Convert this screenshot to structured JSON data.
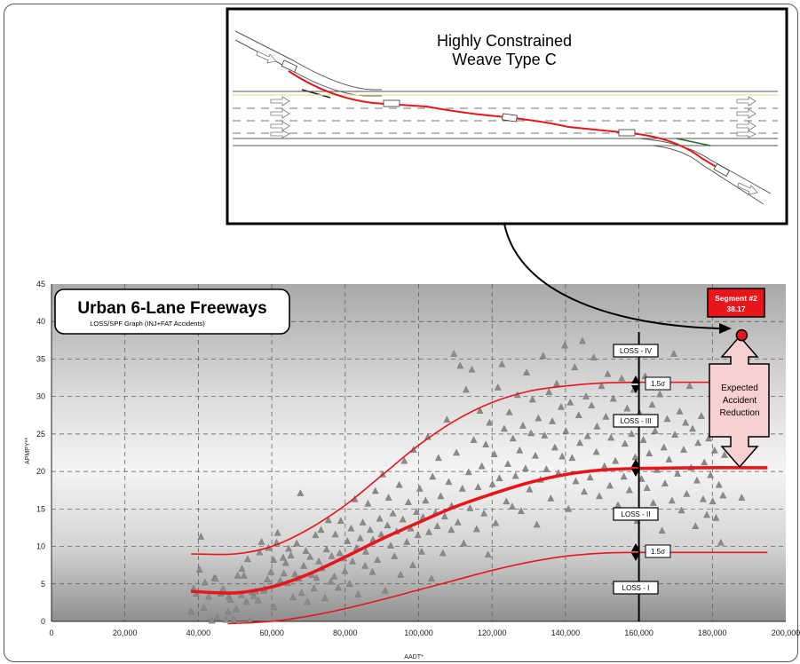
{
  "chart_data": {
    "type": "scatter",
    "title": "Urban 6-Lane Freeways",
    "subtitle": "LOSS/SPF Graph (INJ+FAT Accidents)",
    "xlabel": "AADT*",
    "ylabel": "APMPY**",
    "xlim": [
      0,
      200000
    ],
    "ylim": [
      0,
      45
    ],
    "x_ticks": [
      "0",
      "20,000",
      "40,000",
      "60,000",
      "80,000",
      "100,000",
      "120,000",
      "140,000",
      "160,000",
      "180,000",
      "200,000"
    ],
    "y_ticks": [
      "0",
      "5",
      "10",
      "15",
      "20",
      "25",
      "30",
      "35",
      "40",
      "45"
    ],
    "grid": true,
    "spf_curve": {
      "x": [
        38000,
        50000,
        60000,
        70000,
        80000,
        90000,
        100000,
        110000,
        120000,
        130000,
        140000,
        150000,
        160000,
        175000,
        195000
      ],
      "y": [
        4.0,
        3.8,
        4.6,
        6.3,
        8.6,
        11.0,
        13.2,
        15.3,
        17.0,
        18.5,
        19.6,
        20.2,
        20.4,
        20.5,
        20.5
      ]
    },
    "upper_curve": {
      "x": [
        38000,
        50000,
        60000,
        70000,
        80000,
        90000,
        100000,
        110000,
        120000,
        130000,
        140000,
        150000,
        160000,
        175000,
        195000
      ],
      "y": [
        9.0,
        9.0,
        10.0,
        12.3,
        15.5,
        19.5,
        23.5,
        26.8,
        29.2,
        30.7,
        31.4,
        31.8,
        31.9,
        31.9,
        31.9
      ]
    },
    "lower_curve": {
      "x": [
        48000,
        60000,
        70000,
        80000,
        90000,
        100000,
        110000,
        120000,
        130000,
        140000,
        150000,
        160000,
        175000,
        195000
      ],
      "y": [
        -0.3,
        0.0,
        0.7,
        1.7,
        2.9,
        4.2,
        5.5,
        6.8,
        7.9,
        8.7,
        9.1,
        9.2,
        9.2,
        9.2
      ]
    },
    "loss_labels": [
      "LOSS - IV",
      "LOSS - III",
      "LOSS - II",
      "LOSS - I"
    ],
    "sigma_label": "1.5σ",
    "segment": {
      "label": "Segment #2",
      "value": "38.17",
      "x": 188000,
      "y": 38.17
    },
    "reduction_label": "Expected Accident Reduction",
    "reduction_words": [
      "Expected",
      "Accident",
      "Reduction"
    ],
    "inset": {
      "title_line1": "Highly Constrained",
      "title_line2": "Weave Type C"
    },
    "colors": {
      "curve": "#e8161b",
      "segment": "#e8161b",
      "arrow_fill": "#f7d0d2",
      "marker": "#8a8a8a"
    },
    "points": [
      [
        38000,
        1.3
      ],
      [
        38700,
        4.4
      ],
      [
        39400,
        3.7
      ],
      [
        40300,
        6.9
      ],
      [
        40700,
        11.3
      ],
      [
        41500,
        1.8
      ],
      [
        41800,
        5.2
      ],
      [
        42800,
        3.3
      ],
      [
        43700,
        0.1
      ],
      [
        44400,
        5.8
      ],
      [
        44700,
        5.7
      ],
      [
        45200,
        0.5
      ],
      [
        46100,
        3.7
      ],
      [
        46300,
        3.9
      ],
      [
        46800,
        4.3
      ],
      [
        47500,
        0.2
      ],
      [
        48100,
        1.3
      ],
      [
        48300,
        3.3
      ],
      [
        48700,
        2.9
      ],
      [
        49600,
        0.2
      ],
      [
        50300,
        1.6
      ],
      [
        50700,
        6.1
      ],
      [
        51700,
        3.5
      ],
      [
        51900,
        7.0
      ],
      [
        52400,
        6.1
      ],
      [
        53100,
        2.6
      ],
      [
        53400,
        8.3
      ],
      [
        54000,
        0.1
      ],
      [
        54600,
        3.9
      ],
      [
        55100,
        3.4
      ],
      [
        55600,
        4.0
      ],
      [
        56300,
        2.8
      ],
      [
        56700,
        9.2
      ],
      [
        57200,
        10.6
      ],
      [
        57800,
        4.1
      ],
      [
        58000,
        4.4
      ],
      [
        58800,
        5.6
      ],
      [
        59100,
        9.8
      ],
      [
        59800,
        6.6
      ],
      [
        60500,
        8.2
      ],
      [
        60600,
        1.9
      ],
      [
        61300,
        10.5
      ],
      [
        61600,
        11.8
      ],
      [
        62300,
        5.4
      ],
      [
        63100,
        8.5
      ],
      [
        63300,
        6.4
      ],
      [
        63800,
        7.8
      ],
      [
        64300,
        5.1
      ],
      [
        64600,
        9.7
      ],
      [
        65200,
        8.8
      ],
      [
        65800,
        3.2
      ],
      [
        66300,
        6.3
      ],
      [
        66800,
        10.4
      ],
      [
        67400,
        5.7
      ],
      [
        67800,
        17.1
      ],
      [
        68100,
        3.8
      ],
      [
        68700,
        7.4
      ],
      [
        69300,
        9.4
      ],
      [
        69700,
        2.6
      ],
      [
        70400,
        8.6
      ],
      [
        70900,
        6.2
      ],
      [
        71500,
        4.4
      ],
      [
        71900,
        11.5
      ],
      [
        72200,
        5.8
      ],
      [
        72800,
        8.0
      ],
      [
        73400,
        12.2
      ],
      [
        73700,
        7.1
      ],
      [
        74500,
        3.1
      ],
      [
        74900,
        9.6
      ],
      [
        75400,
        13.5
      ],
      [
        76100,
        5.3
      ],
      [
        76300,
        8.7
      ],
      [
        77000,
        6.0
      ],
      [
        77300,
        11.6
      ],
      [
        78100,
        4.5
      ],
      [
        78500,
        9.1
      ],
      [
        78800,
        13.4
      ],
      [
        79600,
        8.4
      ],
      [
        79900,
        6.7
      ],
      [
        80600,
        10.7
      ],
      [
        81200,
        5.0
      ],
      [
        81600,
        12.4
      ],
      [
        82000,
        8.0
      ],
      [
        82600,
        16.3
      ],
      [
        83100,
        9.8
      ],
      [
        83500,
        3.6
      ],
      [
        84100,
        11.1
      ],
      [
        84800,
        13.2
      ],
      [
        85400,
        7.4
      ],
      [
        85600,
        9.3
      ],
      [
        86200,
        15.7
      ],
      [
        86800,
        12.2
      ],
      [
        87400,
        6.6
      ],
      [
        87600,
        10.9
      ],
      [
        88200,
        17.4
      ],
      [
        88800,
        8.2
      ],
      [
        89400,
        13.7
      ],
      [
        89800,
        11.6
      ],
      [
        90200,
        19.6
      ],
      [
        90900,
        4.1
      ],
      [
        91500,
        12.8
      ],
      [
        91800,
        16.5
      ],
      [
        92400,
        10.1
      ],
      [
        93000,
        14.4
      ],
      [
        93400,
        8.7
      ],
      [
        94000,
        12.0
      ],
      [
        94700,
        18.2
      ],
      [
        95100,
        6.2
      ],
      [
        95700,
        13.6
      ],
      [
        96100,
        21.4
      ],
      [
        96800,
        10.6
      ],
      [
        97200,
        15.9
      ],
      [
        97800,
        12.4
      ],
      [
        98400,
        7.5
      ],
      [
        98600,
        22.9
      ],
      [
        99400,
        14.6
      ],
      [
        99800,
        11.5
      ],
      [
        100300,
        17.7
      ],
      [
        100800,
        9.3
      ],
      [
        101200,
        13.9
      ],
      [
        101900,
        16.1
      ],
      [
        102500,
        24.6
      ],
      [
        102800,
        11.9
      ],
      [
        103500,
        5.7
      ],
      [
        103800,
        19.3
      ],
      [
        104600,
        14.5
      ],
      [
        105100,
        12.7
      ],
      [
        105400,
        21.8
      ],
      [
        106000,
        16.7
      ],
      [
        106600,
        9.1
      ],
      [
        107100,
        14.0
      ],
      [
        107700,
        26.9
      ],
      [
        108200,
        18.6
      ],
      [
        108900,
        12.2
      ],
      [
        109000,
        15.4
      ],
      [
        109600,
        35.7
      ],
      [
        110300,
        22.5
      ],
      [
        110700,
        13.2
      ],
      [
        111300,
        34.1
      ],
      [
        111900,
        17.7
      ],
      [
        112300,
        10.4
      ],
      [
        112900,
        30.9
      ],
      [
        113600,
        19.9
      ],
      [
        114000,
        15.1
      ],
      [
        114500,
        33.6
      ],
      [
        115000,
        24.2
      ],
      [
        115800,
        12.3
      ],
      [
        116200,
        17.9
      ],
      [
        116700,
        28.1
      ],
      [
        117200,
        20.7
      ],
      [
        117800,
        14.4
      ],
      [
        118300,
        23.6
      ],
      [
        118900,
        8.9
      ],
      [
        119300,
        26.5
      ],
      [
        120100,
        18.3
      ],
      [
        120600,
        22.3
      ],
      [
        121000,
        13.1
      ],
      [
        121600,
        31.2
      ],
      [
        122000,
        19.1
      ],
      [
        122700,
        34.3
      ],
      [
        123300,
        25.7
      ],
      [
        123900,
        16.0
      ],
      [
        124300,
        21.0
      ],
      [
        124700,
        27.9
      ],
      [
        125500,
        15.3
      ],
      [
        125700,
        24.4
      ],
      [
        126400,
        19.4
      ],
      [
        126900,
        30.2
      ],
      [
        127500,
        22.8
      ],
      [
        127900,
        14.7
      ],
      [
        128400,
        26.1
      ],
      [
        129100,
        20.4
      ],
      [
        129400,
        33.2
      ],
      [
        130200,
        17.6
      ],
      [
        130600,
        25.1
      ],
      [
        131000,
        29.6
      ],
      [
        131800,
        22.1
      ],
      [
        132200,
        12.9
      ],
      [
        132600,
        27.1
      ],
      [
        133200,
        18.9
      ],
      [
        133900,
        35.4
      ],
      [
        134300,
        24.8
      ],
      [
        134800,
        20.3
      ],
      [
        135500,
        30.6
      ],
      [
        136000,
        16.4
      ],
      [
        136400,
        26.7
      ],
      [
        137100,
        23.2
      ],
      [
        137600,
        31.7
      ],
      [
        138100,
        19.8
      ],
      [
        138800,
        28.6
      ],
      [
        139100,
        22.0
      ],
      [
        139800,
        36.8
      ],
      [
        140100,
        25.4
      ],
      [
        140800,
        15.0
      ],
      [
        141300,
        29.2
      ],
      [
        141800,
        21.8
      ],
      [
        142500,
        33.9
      ],
      [
        142800,
        18.7
      ],
      [
        143600,
        27.5
      ],
      [
        143900,
        23.8
      ],
      [
        144600,
        37.4
      ],
      [
        145100,
        17.3
      ],
      [
        145600,
        30.0
      ],
      [
        146000,
        24.7
      ],
      [
        146700,
        19.2
      ],
      [
        147100,
        28.8
      ],
      [
        147700,
        35.2
      ],
      [
        148400,
        22.6
      ],
      [
        148600,
        26.0
      ],
      [
        149200,
        16.7
      ],
      [
        149800,
        31.4
      ],
      [
        150600,
        20.7
      ],
      [
        151000,
        27.3
      ],
      [
        151500,
        33.0
      ],
      [
        152100,
        18.1
      ],
      [
        152400,
        24.5
      ],
      [
        153000,
        29.7
      ],
      [
        153600,
        21.4
      ],
      [
        154300,
        15.5
      ],
      [
        154800,
        26.3
      ],
      [
        155300,
        32.4
      ],
      [
        155900,
        19.3
      ],
      [
        156200,
        23.7
      ],
      [
        156800,
        28.4
      ],
      [
        157400,
        17.5
      ],
      [
        158000,
        25.0
      ],
      [
        158600,
        30.9
      ],
      [
        159000,
        21.9
      ],
      [
        159500,
        13.4
      ],
      [
        160200,
        27.8
      ],
      [
        160700,
        19.0
      ],
      [
        161200,
        24.2
      ],
      [
        161700,
        32.7
      ],
      [
        162200,
        17.8
      ],
      [
        162800,
        22.4
      ],
      [
        163600,
        28.9
      ],
      [
        163900,
        15.8
      ],
      [
        164400,
        25.4
      ],
      [
        164900,
        20.2
      ],
      [
        165700,
        30.3
      ],
      [
        166300,
        12.1
      ],
      [
        166800,
        23.2
      ],
      [
        167100,
        18.4
      ],
      [
        167700,
        27.0
      ],
      [
        168200,
        21.6
      ],
      [
        169000,
        16.1
      ],
      [
        169500,
        35.7
      ],
      [
        169800,
        24.9
      ],
      [
        170500,
        19.7
      ],
      [
        171100,
        28.0
      ],
      [
        171600,
        14.8
      ],
      [
        172200,
        22.9
      ],
      [
        172700,
        26.5
      ],
      [
        173000,
        17.0
      ],
      [
        173800,
        31.4
      ],
      [
        174200,
        20.5
      ],
      [
        174600,
        25.7
      ],
      [
        175400,
        12.7
      ],
      [
        175800,
        18.8
      ],
      [
        176100,
        23.8
      ],
      [
        177000,
        27.4
      ],
      [
        177500,
        16.3
      ],
      [
        177800,
        21.2
      ],
      [
        178500,
        14.2
      ],
      [
        179000,
        24.4
      ],
      [
        179500,
        19.5
      ],
      [
        180100,
        16.0
      ],
      [
        180600,
        22.8
      ],
      [
        181000,
        13.8
      ],
      [
        181800,
        18.2
      ],
      [
        182300,
        10.5
      ],
      [
        182900,
        16.8
      ],
      [
        183300,
        22.2
      ],
      [
        188000,
        16.5
      ]
    ]
  }
}
